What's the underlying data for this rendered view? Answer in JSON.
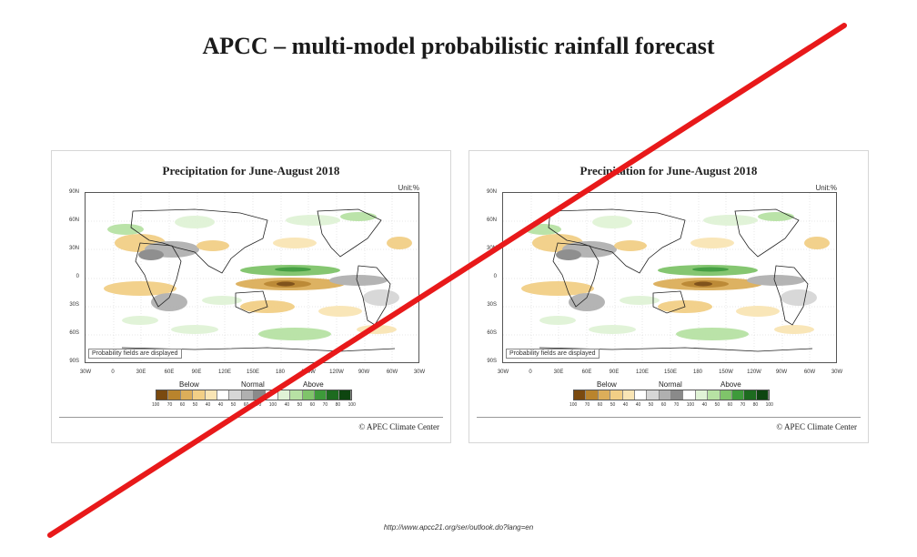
{
  "slide": {
    "title": "APCC – multi-model probabilistic rainfall forecast",
    "source_url": "http://www.apcc21.org/ser/outlook.do?lang=en"
  },
  "maps": [
    {
      "title": "Precipitation for June-August 2018",
      "unit": "Unit:%",
      "note": "Probability fields are displayed",
      "credit": "© APEC Climate Center",
      "lat_labels": [
        "90N",
        "60N",
        "30N",
        "0",
        "30S",
        "60S",
        "90S"
      ],
      "lon_labels": [
        "30W",
        "0",
        "30E",
        "60E",
        "90E",
        "120E",
        "150E",
        "180",
        "150W",
        "120W",
        "90W",
        "60W",
        "30W"
      ],
      "legend": {
        "below_label": "Below",
        "normal_label": "Normal",
        "above_label": "Above",
        "ticks": [
          "100",
          "70",
          "60",
          "50",
          "40",
          "40",
          "50",
          "60",
          "70",
          "100",
          "40",
          "50",
          "60",
          "70",
          "80",
          "100"
        ]
      }
    },
    {
      "title": "Precipitation for June-August 2018",
      "unit": "Unit:%",
      "note": "Probability fields are displayed",
      "credit": "© APEC Climate Center",
      "lat_labels": [
        "90N",
        "60N",
        "30N",
        "0",
        "30S",
        "60S",
        "90S"
      ],
      "lon_labels": [
        "30W",
        "0",
        "30E",
        "60E",
        "90E",
        "120E",
        "150E",
        "180",
        "150W",
        "120W",
        "90W",
        "60W",
        "30W"
      ],
      "legend": {
        "below_label": "Below",
        "normal_label": "Normal",
        "above_label": "Above",
        "ticks": [
          "100",
          "70",
          "60",
          "50",
          "40",
          "40",
          "50",
          "60",
          "70",
          "100",
          "40",
          "50",
          "60",
          "70",
          "80",
          "100"
        ]
      }
    }
  ],
  "colors": {
    "cross_line": "#e8191a",
    "below_scale": [
      "#7a4a10",
      "#b9842d",
      "#dcae5a",
      "#f2cf86",
      "#f9e5b5"
    ],
    "normal_scale": [
      "#ffffff",
      "#d6d6d6",
      "#b0b0b0",
      "#8a8a8a",
      "#ffffff"
    ],
    "above_scale": [
      "#e0f3d6",
      "#b7e2a4",
      "#7fc46a",
      "#3d9a3a",
      "#1d6b1f",
      "#0e4510"
    ]
  }
}
